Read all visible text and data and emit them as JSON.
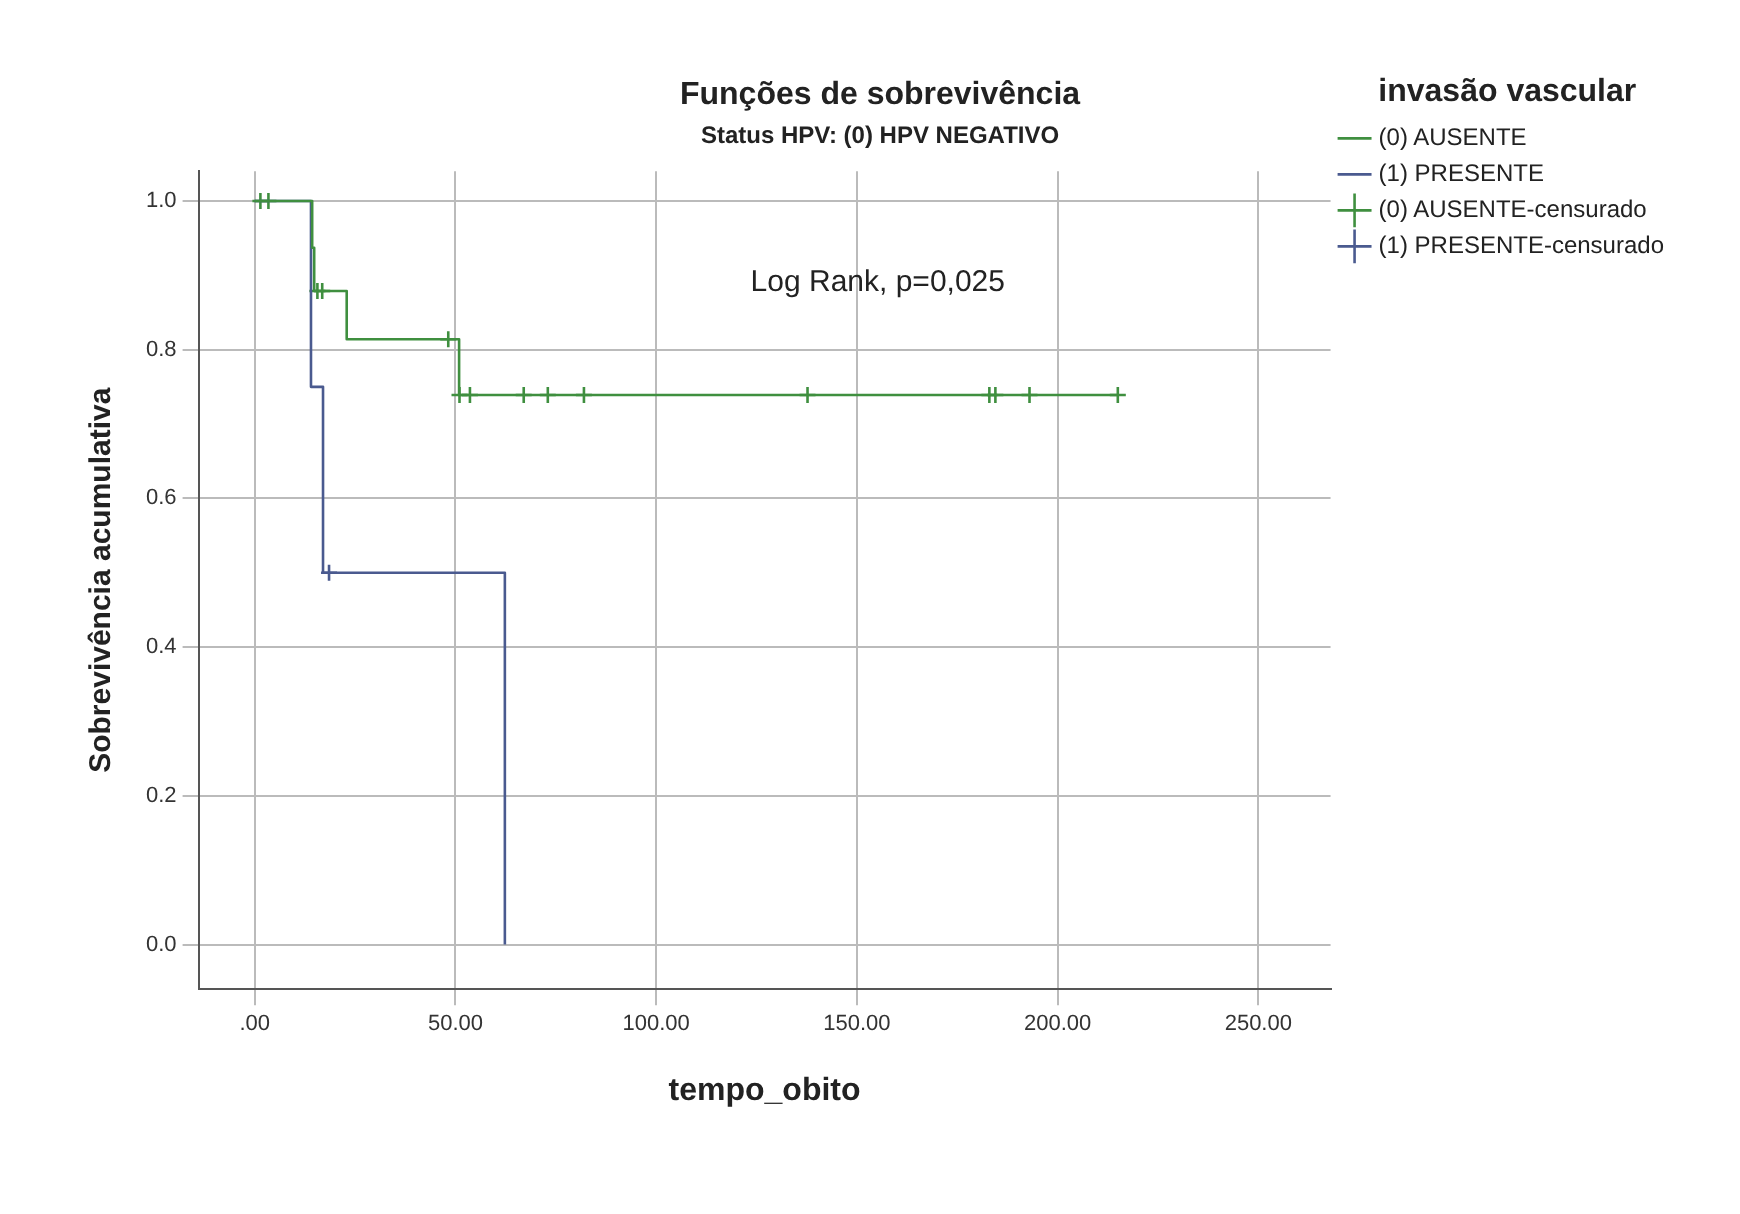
{
  "chart_data": {
    "type": "step",
    "title": "Funções de sobrevivência",
    "subtitle": "Status HPV: (0) HPV NEGATIVO",
    "xlabel": "tempo_obito",
    "ylabel": "Sobrevivência acumulativa",
    "legend_title": "invasão vascular",
    "annotations": [
      "Log Rank, p=0,025"
    ],
    "xlim": [
      -14,
      268
    ],
    "ylim": [
      -0.06,
      1.04
    ],
    "xticks": [
      {
        "value": 0,
        "label": ".00"
      },
      {
        "value": 50,
        "label": "50.00"
      },
      {
        "value": 100,
        "label": "100.00"
      },
      {
        "value": 150,
        "label": "150.00"
      },
      {
        "value": 200,
        "label": "200.00"
      },
      {
        "value": 250,
        "label": "250.00"
      }
    ],
    "yticks": [
      {
        "value": 0,
        "label": "0.0"
      },
      0.2,
      0.4,
      0.6,
      0.8,
      {
        "value": 1,
        "label": "1.0"
      }
    ],
    "grid": true,
    "legend": "right",
    "series": [
      {
        "name": "(0) AUSENTE",
        "color": "#3f8f3f",
        "x": [
          0,
          14.3,
          14.8,
          22.9,
          50.9,
          215
        ],
        "values": [
          1,
          0.937,
          0.879,
          0.814,
          0.739,
          0.739
        ]
      },
      {
        "name": "(1) PRESENTE",
        "color": "#4a5a8f",
        "x": [
          0,
          14,
          17,
          62.3
        ],
        "values": [
          1,
          0.75,
          0.5,
          0
        ]
      },
      {
        "name": "(0) AUSENTE-censurado",
        "type": "scatter",
        "marker": "cross",
        "color": "#3f8f3f",
        "x": [
          1.4,
          3.4,
          15.6,
          16.8,
          48.2,
          51,
          53.6,
          67,
          73,
          82,
          137.7,
          183,
          184.5,
          193,
          215
        ],
        "values": [
          1,
          1,
          0.879,
          0.879,
          0.814,
          0.739,
          0.739,
          0.739,
          0.739,
          0.739,
          0.739,
          0.739,
          0.739,
          0.739,
          0.739
        ]
      },
      {
        "name": "(1) PRESENTE-censurado",
        "type": "scatter",
        "marker": "cross",
        "color": "#4a5a8f",
        "x": [
          18.5
        ],
        "values": [
          0.5
        ]
      }
    ]
  }
}
